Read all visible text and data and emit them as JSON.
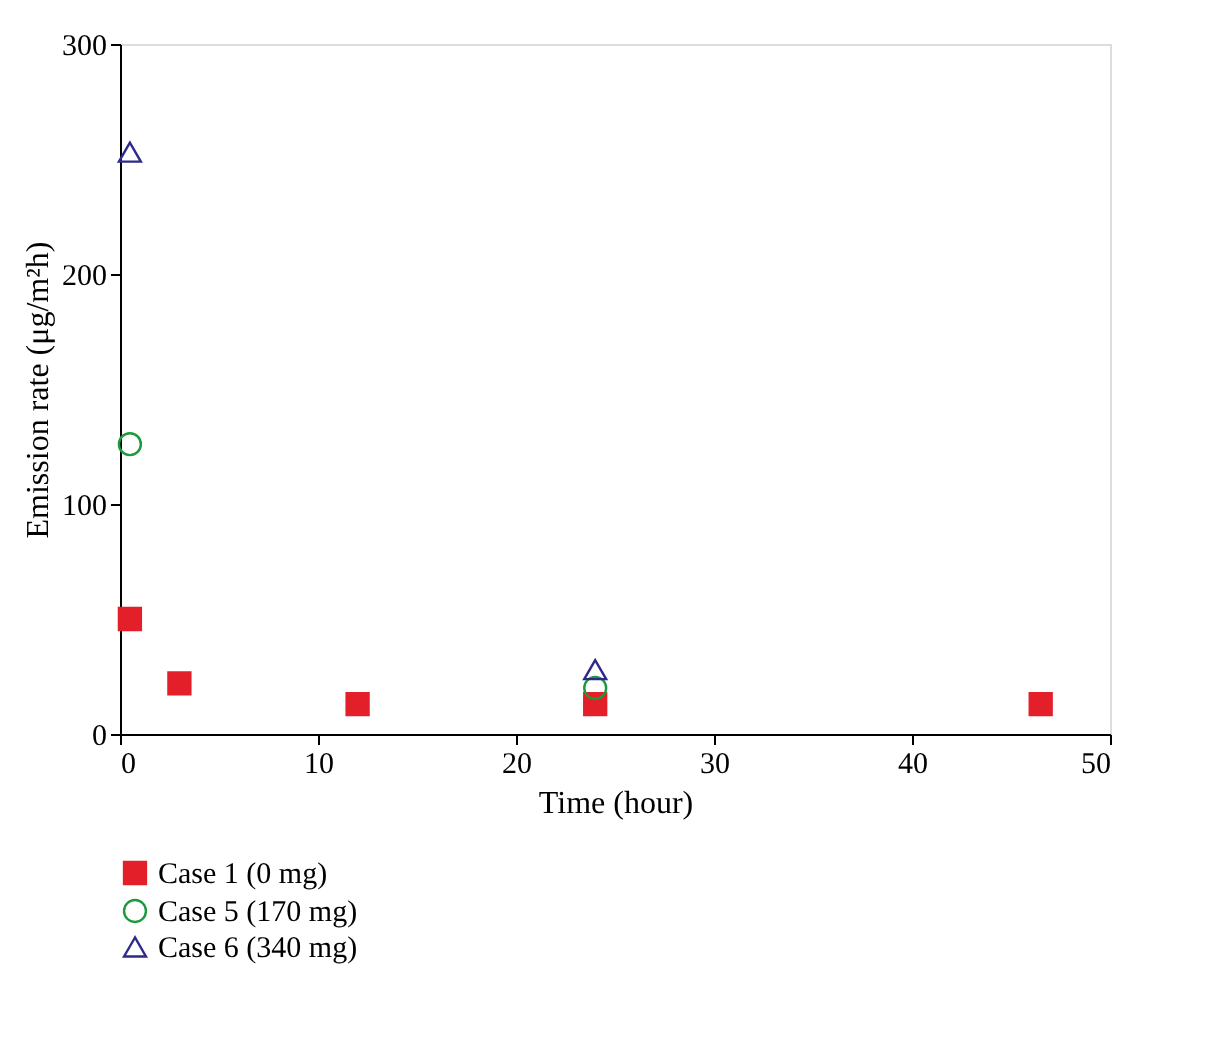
{
  "chart_data": {
    "type": "scatter",
    "xlabel": "Time (hour)",
    "ylabel": "Emission rate (μg/m²h)",
    "xlim": [
      0,
      50
    ],
    "xticks": [
      0,
      10,
      20,
      30,
      40,
      50
    ],
    "ylim": [
      0,
      300
    ],
    "yticks": [
      0,
      100,
      200,
      300
    ],
    "grid": false,
    "legend": "bottom left",
    "series": [
      {
        "name": "Case 1 (0 mg)",
        "color": "#e3202a",
        "marker": "square",
        "x": [
          0.5,
          3,
          12,
          24,
          46.5
        ],
        "values": [
          50,
          22,
          13,
          13,
          13
        ]
      },
      {
        "name": "Case 5 (170 mg)",
        "color": "#1a9a3a",
        "marker": "circle",
        "x": [
          0.5,
          24
        ],
        "values": [
          126,
          20
        ]
      },
      {
        "name": "Case 6 (340 mg)",
        "color": "#2e2a8c",
        "marker": "triangle",
        "x": [
          0.5,
          24
        ],
        "values": [
          253,
          28
        ]
      }
    ]
  }
}
